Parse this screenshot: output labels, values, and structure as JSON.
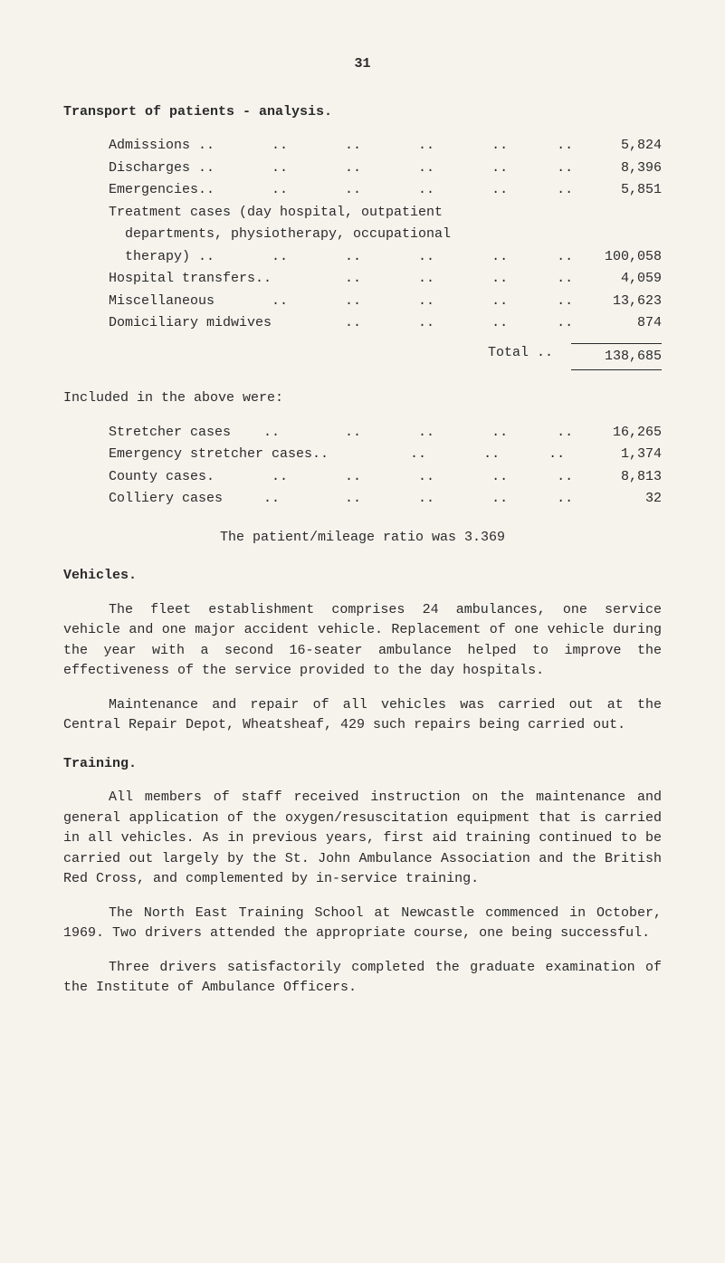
{
  "page_number": "31",
  "title": "Transport of patients - analysis.",
  "table1": {
    "rows": [
      {
        "label": "Admissions ..       ..       ..       ..       ..      ..",
        "value": "5,824"
      },
      {
        "label": "Discharges ..       ..       ..       ..       ..      ..",
        "value": "8,396"
      },
      {
        "label": "Emergencies..       ..       ..       ..       ..      ..",
        "value": "5,851"
      },
      {
        "label": "Treatment cases (day hospital, outpatient",
        "value": ""
      },
      {
        "label": "  departments, physiotherapy, occupational",
        "value": ""
      },
      {
        "label": "  therapy) ..       ..       ..       ..       ..      ..",
        "value": "100,058"
      },
      {
        "label": "Hospital transfers..         ..       ..       ..      ..",
        "value": "4,059"
      },
      {
        "label": "Miscellaneous       ..       ..       ..       ..      ..",
        "value": "13,623"
      },
      {
        "label": "Domiciliary midwives         ..       ..       ..      ..",
        "value": "874"
      }
    ],
    "total_label": "Total  ..",
    "total_value": "138,685"
  },
  "included_label": "Included in the above were:",
  "table2": {
    "rows": [
      {
        "label": "Stretcher cases    ..        ..       ..       ..      ..",
        "value": "16,265"
      },
      {
        "label": "Emergency stretcher cases..          ..       ..      ..",
        "value": "1,374"
      },
      {
        "label": "County cases.       ..       ..       ..       ..      ..",
        "value": "8,813"
      },
      {
        "label": "Colliery cases     ..        ..       ..       ..      ..",
        "value": "32"
      }
    ]
  },
  "ratio_text": "The patient/mileage ratio was 3.369",
  "vehicles_title": "Vehicles.",
  "vehicles_p1": "The fleet establishment comprises 24 ambulances, one service vehicle and one major accident vehicle. Replacement of one vehicle during the year with a second 16-seater ambulance helped to improve the effectiveness of the service provided to the day hospitals.",
  "vehicles_p2": "Maintenance and repair of all vehicles was carried out at the Central Repair Depot, Wheatsheaf, 429 such repairs being carried out.",
  "training_title": "Training.",
  "training_p1": "All members of staff received instruction on the maintenance and general application of the oxygen/resuscitation equipment that is carried in all vehicles. As in previous years, first aid training continued to be carried out largely by the St. John Ambulance Association and the British Red Cross, and complemented by in-service training.",
  "training_p2": "The North East Training School at Newcastle commenced in October, 1969. Two drivers attended the appropriate course, one being successful.",
  "training_p3": "Three drivers satisfactorily completed the graduate examination of the Institute of Ambulance Officers."
}
